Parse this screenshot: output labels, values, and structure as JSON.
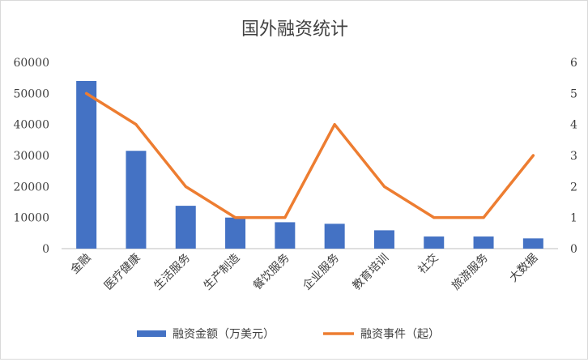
{
  "chart_data": {
    "type": "bar",
    "title": "国外融资统计",
    "categories": [
      "金融",
      "医疗健康",
      "生活服务",
      "生产制造",
      "餐饮服务",
      "企业服务",
      "教育培训",
      "社交",
      "旅游服务",
      "大数据"
    ],
    "series": [
      {
        "name": "融资金额（万美元）",
        "type": "bar",
        "axis": "left",
        "color": "#4472c4",
        "values": [
          54000,
          31500,
          13800,
          10000,
          8500,
          8000,
          5900,
          3900,
          3900,
          3300
        ]
      },
      {
        "name": "融资事件（起）",
        "type": "line",
        "axis": "right",
        "color": "#ed7d31",
        "values": [
          5,
          4,
          2,
          1,
          1,
          4,
          2,
          1,
          1,
          3
        ]
      }
    ],
    "y_left": {
      "range": [
        0,
        60000
      ],
      "ticks": [
        "0",
        "10000",
        "20000",
        "30000",
        "40000",
        "50000",
        "60000"
      ]
    },
    "y_right": {
      "range": [
        0,
        6
      ],
      "ticks": [
        "0",
        "1",
        "2",
        "3",
        "4",
        "5",
        "6"
      ]
    },
    "grid": false,
    "legend_position": "bottom"
  }
}
